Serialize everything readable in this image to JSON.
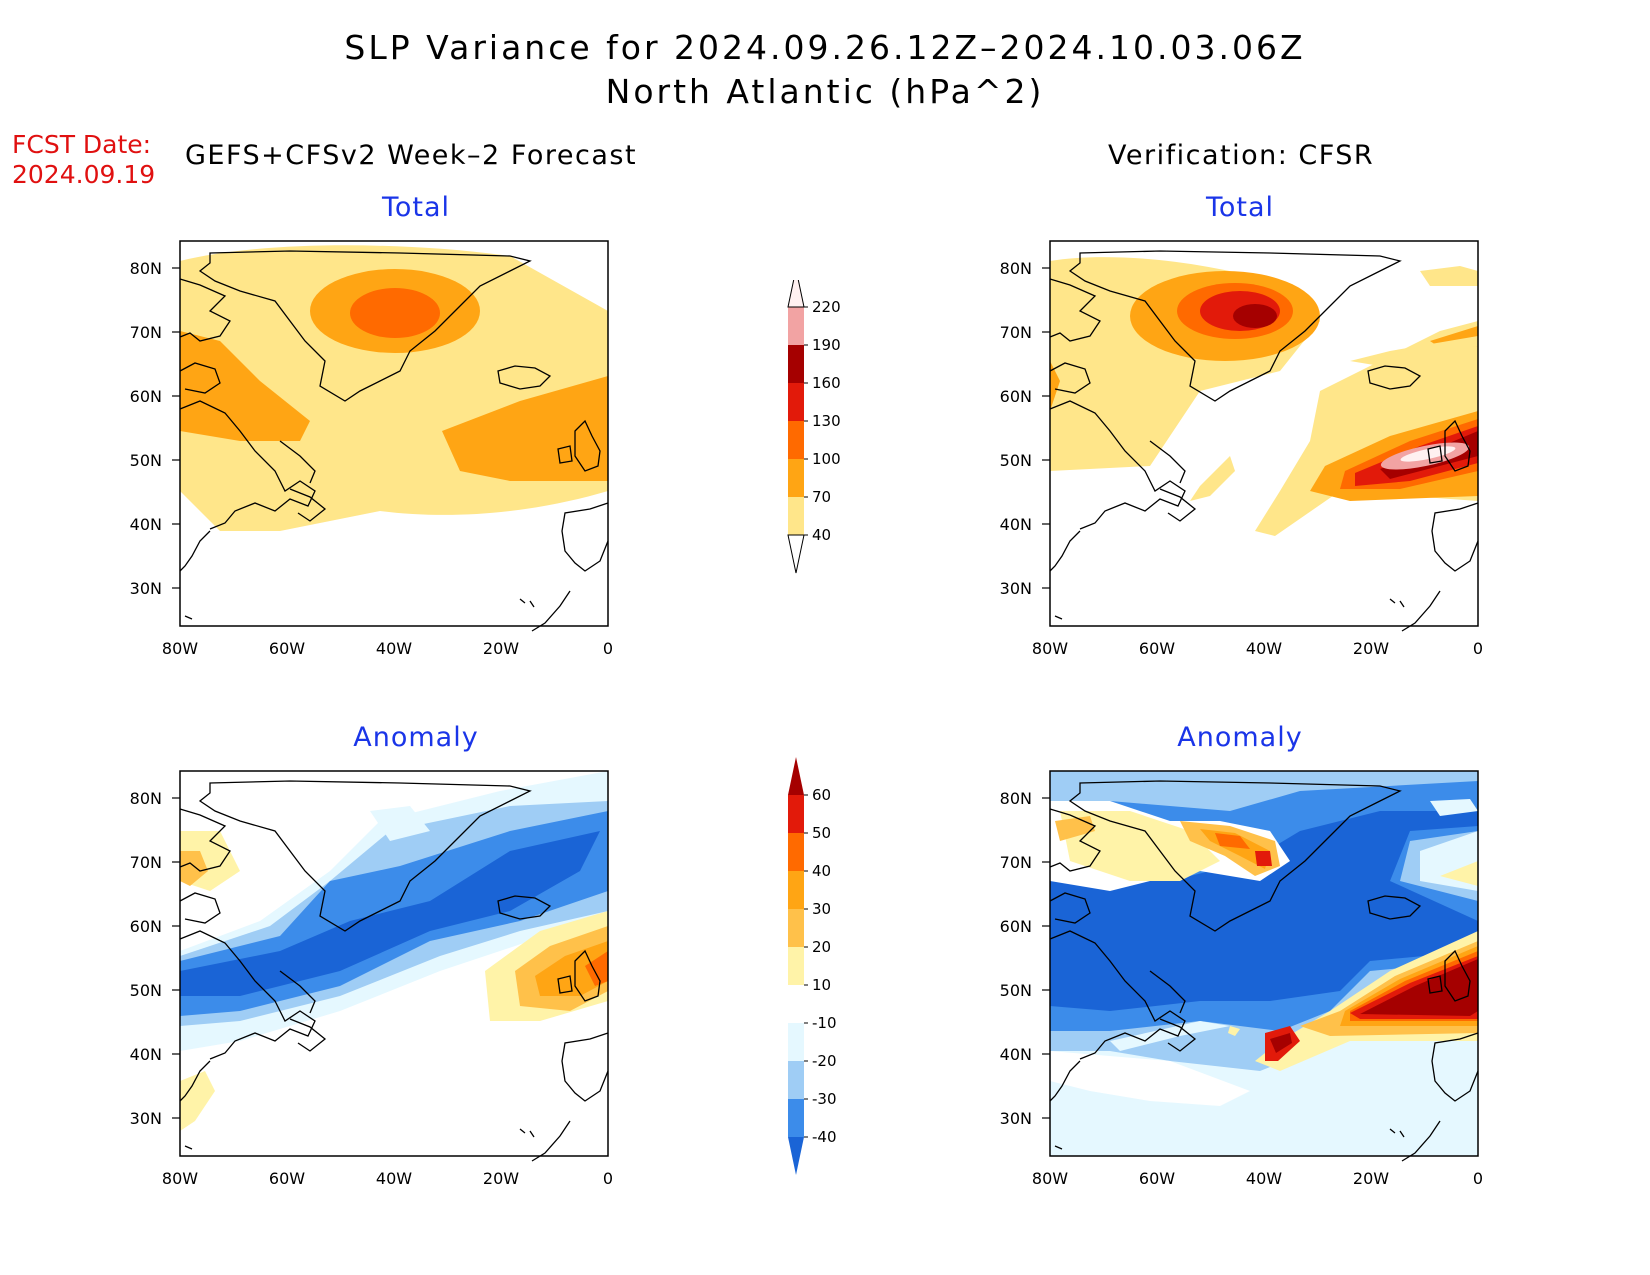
{
  "title": {
    "line1": "SLP Variance for 2024.09.26.12Z–2024.10.03.06Z",
    "line2": "North Atlantic (hPa^2)"
  },
  "forecast": {
    "label": "FCST Date:",
    "date": "2024.09.19",
    "heading": "GEFS+CFSv2 Week–2 Forecast"
  },
  "verification": {
    "heading": "Verification: CFSR"
  },
  "panels": {
    "fc_total": {
      "title": "Total"
    },
    "fc_anom": {
      "title": "Anomaly"
    },
    "ver_total": {
      "title": "Total"
    },
    "ver_anom": {
      "title": "Anomaly"
    }
  },
  "axes": {
    "lat_labels": [
      "80N",
      "70N",
      "60N",
      "50N",
      "40N",
      "30N"
    ],
    "lon_labels": [
      "80W",
      "60W",
      "40W",
      "20W",
      "0"
    ]
  },
  "colorbars": {
    "total": {
      "levels": [
        "40",
        "70",
        "100",
        "130",
        "160",
        "190",
        "220"
      ],
      "colors": [
        "#ffe68a",
        "#ffa514",
        "#ff6a00",
        "#e21a0a",
        "#a50000",
        "#f2a3a3",
        "#fff1f1"
      ]
    },
    "anomaly": {
      "levels": [
        "-40",
        "-30",
        "-20",
        "-10",
        "10",
        "20",
        "30",
        "40",
        "50",
        "60"
      ],
      "colors": [
        "#1a64d6",
        "#3c8cea",
        "#9fcdf5",
        "#e5f8ff",
        "#ffffff",
        "#fff3a8",
        "#ffc14a",
        "#ffa514",
        "#ff6a00",
        "#e21a0a",
        "#a50000"
      ]
    }
  }
}
